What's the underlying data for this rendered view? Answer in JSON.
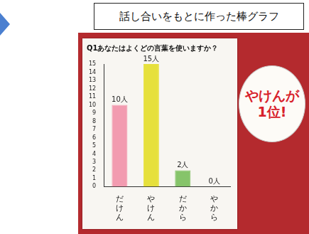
{
  "header": {
    "title": "話し合いをもとに作った棒グラフ"
  },
  "chart_data": {
    "type": "bar",
    "title": "Q1あなたはよくどの言葉を使いますか？",
    "categories": [
      "だけん",
      "やけん",
      "だから",
      "やから"
    ],
    "values": [
      10,
      15,
      2,
      0
    ],
    "value_labels": [
      "10人",
      "15人",
      "2人",
      "0人"
    ],
    "colors": [
      "#f29bb0",
      "#e6e03c",
      "#86c46a",
      "#c8c8c8"
    ],
    "ylim": [
      0,
      15
    ],
    "yticks": [
      0,
      1,
      2,
      3,
      4,
      5,
      6,
      7,
      8,
      9,
      10,
      11,
      12,
      13,
      14,
      15
    ],
    "grid": false,
    "data_labels": true,
    "annotations": [
      "やけんが1位!"
    ]
  }
}
